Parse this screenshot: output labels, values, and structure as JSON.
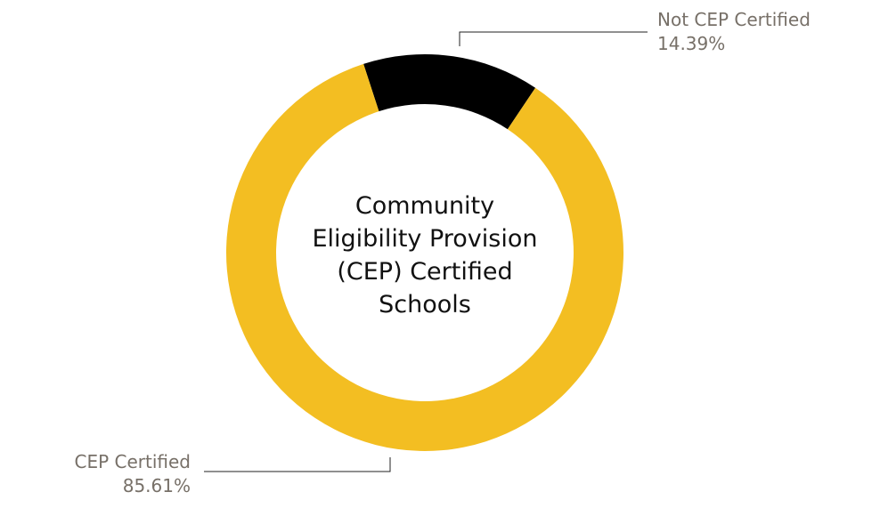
{
  "chart_data": {
    "type": "pie",
    "donut": true,
    "center_label": [
      "Community",
      "Eligibility Provision",
      "(CEP) Certified",
      "Schools"
    ],
    "slices": [
      {
        "label": "Not CEP Certified",
        "value": 14.39,
        "value_label": "14.39%",
        "color": "#000000"
      },
      {
        "label": "CEP Certified",
        "value": 85.61,
        "value_label": "85.61%",
        "color": "#F3BE22"
      }
    ],
    "legend": "none"
  }
}
